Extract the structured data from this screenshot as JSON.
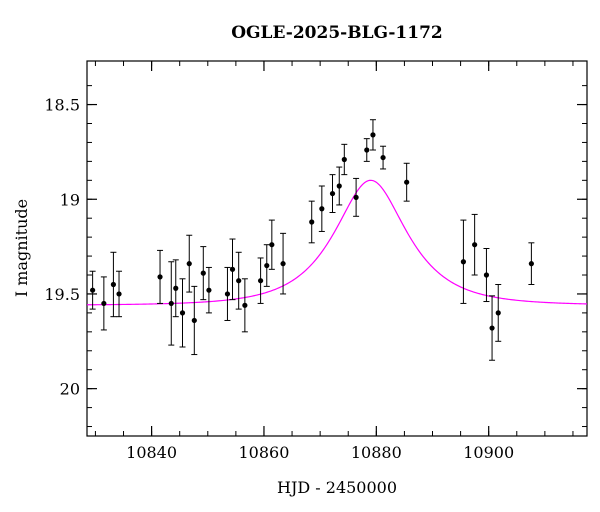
{
  "chart_data": {
    "type": "scatter",
    "title": "OGLE-2025-BLG-1172",
    "xlabel": "HJD - 2450000",
    "ylabel": "I magnitude",
    "xlim": [
      10828.5,
      10917.5
    ],
    "ylim": [
      20.25,
      18.27
    ],
    "y_inverted": true,
    "x_ticks": [
      10840,
      10860,
      10880,
      10900
    ],
    "x_tick_labels": [
      "10840",
      "10860",
      "10880",
      "10900"
    ],
    "y_ticks": [
      18.5,
      19,
      19.5,
      20
    ],
    "y_tick_labels": [
      "18.5",
      "19",
      "19.5",
      "20"
    ],
    "grid": false,
    "series": [
      {
        "kind": "points_with_errorbars",
        "color": "#000000",
        "x": [
          10829.5,
          10831.5,
          10833.2,
          10834.2,
          10841.5,
          10843.5,
          10844.3,
          10845.5,
          10846.7,
          10847.6,
          10849.2,
          10850.2,
          10853.5,
          10854.4,
          10855.5,
          10856.6,
          10859.4,
          10860.5,
          10861.4,
          10863.4,
          10868.5,
          10870.3,
          10872.2,
          10873.4,
          10874.3,
          10876.4,
          10878.3,
          10879.4,
          10881.2,
          10885.4,
          10895.5,
          10897.5,
          10899.6,
          10900.6,
          10901.7,
          10907.6
        ],
        "y": [
          19.48,
          19.55,
          19.45,
          19.5,
          19.41,
          19.55,
          19.47,
          19.6,
          19.34,
          19.64,
          19.39,
          19.48,
          19.5,
          19.37,
          19.43,
          19.56,
          19.43,
          19.35,
          19.24,
          19.34,
          19.12,
          19.05,
          18.97,
          18.93,
          18.79,
          18.99,
          18.74,
          18.66,
          18.78,
          18.91,
          19.33,
          19.24,
          19.4,
          19.68,
          19.6,
          19.34
        ],
        "yerr": [
          0.1,
          0.14,
          0.17,
          0.12,
          0.14,
          0.22,
          0.15,
          0.18,
          0.15,
          0.18,
          0.14,
          0.12,
          0.14,
          0.16,
          0.15,
          0.14,
          0.12,
          0.11,
          0.13,
          0.16,
          0.11,
          0.12,
          0.1,
          0.1,
          0.08,
          0.1,
          0.06,
          0.08,
          0.06,
          0.1,
          0.22,
          0.16,
          0.14,
          0.17,
          0.15,
          0.11
        ]
      },
      {
        "kind": "model_curve",
        "color": "#ff00ff",
        "model": {
          "t0": 10879.0,
          "tE": 10.0,
          "u0": 0.62,
          "baseline": 19.56
        }
      }
    ]
  }
}
